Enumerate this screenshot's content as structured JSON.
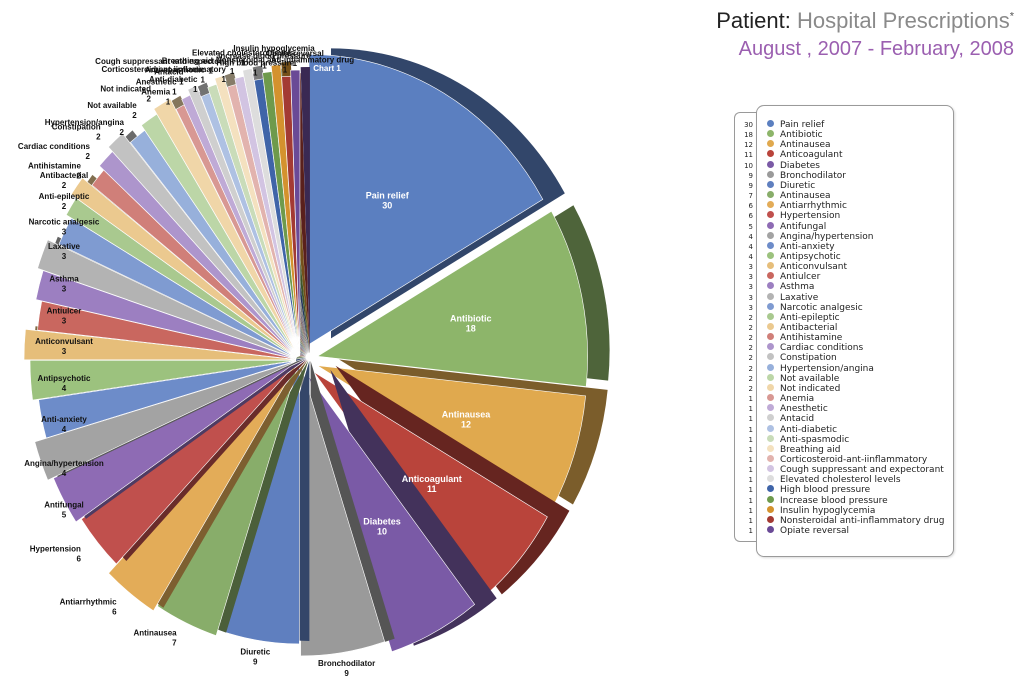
{
  "title": {
    "prefix": "Patient:",
    "main": "Hospital Prescriptions",
    "marker": "*",
    "subtitle": "August , 2007 - February, 2008"
  },
  "chart_data": {
    "type": "pie",
    "title": "Chart 1",
    "slices": [
      {
        "label": "Pain relief",
        "value": 30,
        "color": "#5b7fc0"
      },
      {
        "label": "Antibiotic",
        "value": 18,
        "color": "#8db56a"
      },
      {
        "label": "Antinausea",
        "value": 12,
        "color": "#e0a94e"
      },
      {
        "label": "Anticoagulant",
        "value": 11,
        "color": "#b9443b"
      },
      {
        "label": "Diabetes",
        "value": 10,
        "color": "#7a5aa6"
      },
      {
        "label": "Bronchodilator",
        "value": 9,
        "color": "#9a9a9a"
      },
      {
        "label": "Diuretic",
        "value": 9,
        "color": "#5f7fbf"
      },
      {
        "label": "Antinausea",
        "value": 7,
        "color": "#88ad6a"
      },
      {
        "label": "Antiarrhythmic",
        "value": 6,
        "color": "#e3ac58"
      },
      {
        "label": "Hypertension",
        "value": 6,
        "color": "#c0504d"
      },
      {
        "label": "Antifungal",
        "value": 5,
        "color": "#8e6bb4"
      },
      {
        "label": "Angina/hypertension",
        "value": 4,
        "color": "#a3a3a3"
      },
      {
        "label": "Anti-anxiety",
        "value": 4,
        "color": "#6d8cc9"
      },
      {
        "label": "Antipsychotic",
        "value": 4,
        "color": "#9cc27e"
      },
      {
        "label": "Anticonvulsant",
        "value": 3,
        "color": "#e6be7a"
      },
      {
        "label": "Antiulcer",
        "value": 3,
        "color": "#c9675f"
      },
      {
        "label": "Asthma",
        "value": 3,
        "color": "#9c7fc1"
      },
      {
        "label": "Laxative",
        "value": 3,
        "color": "#b3b3b3"
      },
      {
        "label": "Narcotic analgesic",
        "value": 3,
        "color": "#7f9bd1"
      },
      {
        "label": "Anti-epileptic",
        "value": 2,
        "color": "#a9c98f"
      },
      {
        "label": "Antibacterial",
        "value": 2,
        "color": "#ebc98f"
      },
      {
        "label": "Antihistamine",
        "value": 2,
        "color": "#d07f79"
      },
      {
        "label": "Cardiac conditions",
        "value": 2,
        "color": "#ad95cc"
      },
      {
        "label": "Constipation",
        "value": 2,
        "color": "#c2c2c2"
      },
      {
        "label": "Hypertension/angina",
        "value": 2,
        "color": "#97b0db"
      },
      {
        "label": "Not available",
        "value": 2,
        "color": "#bcd6a7"
      },
      {
        "label": "Not indicated",
        "value": 2,
        "color": "#f0d6a8"
      },
      {
        "label": "Anemia",
        "value": 1,
        "color": "#d89893"
      },
      {
        "label": "Anesthetic",
        "value": 1,
        "color": "#bfaad6"
      },
      {
        "label": "Antacid",
        "value": 1,
        "color": "#cfcfcf"
      },
      {
        "label": "Anti-diabetic",
        "value": 1,
        "color": "#aec1e3"
      },
      {
        "label": "Anti-spasmodic",
        "value": 1,
        "color": "#c9dcb9"
      },
      {
        "label": "Breathing aid",
        "value": 1,
        "color": "#f4e1bf"
      },
      {
        "label": "Corticosteroid-ant-iinflammatory",
        "value": 1,
        "color": "#e2b3ae"
      },
      {
        "label": "Cough suppressant and expectorant",
        "value": 1,
        "color": "#d2c4e2"
      },
      {
        "label": "Elevated cholesterol levels",
        "value": 1,
        "color": "#dddddd"
      },
      {
        "label": "High blood pressure",
        "value": 1,
        "color": "#3f64a8"
      },
      {
        "label": "Increase blood pressure",
        "value": 1,
        "color": "#6e9a4c"
      },
      {
        "label": "Insulin hypoglycemia",
        "value": 1,
        "color": "#d4922e"
      },
      {
        "label": "Nonsteroidal anti-inflammatory drug",
        "value": 1,
        "color": "#a33a33"
      },
      {
        "label": "Opiate reversal",
        "value": 1,
        "color": "#6a4a96"
      }
    ],
    "legend_placement": "right"
  }
}
